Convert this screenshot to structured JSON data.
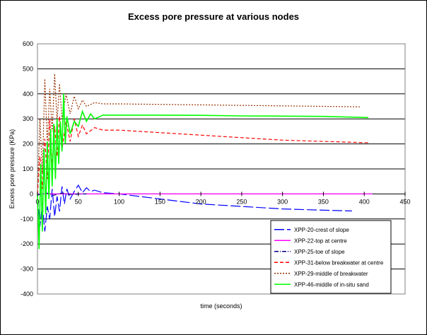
{
  "chart_data": {
    "type": "line",
    "title": "Excess pore pressure at various nodes",
    "xlabel": "time (seconds)",
    "ylabel": "Excess pore pressure (KPa)",
    "xlim": [
      0,
      450
    ],
    "ylim": [
      -400,
      600
    ],
    "x_ticks": [
      0,
      50,
      100,
      150,
      200,
      250,
      300,
      350,
      400,
      450
    ],
    "y_ticks": [
      600,
      500,
      400,
      300,
      200,
      100,
      0,
      -100,
      -200,
      -300,
      -400
    ],
    "grid": "horizontal",
    "legend_position": "bottom-right",
    "series": [
      {
        "name": "XPP-20-crest of slope",
        "color": "#0000ff",
        "dash": "solid-gapped",
        "x": [
          0,
          3,
          6,
          9,
          12,
          15,
          18,
          21,
          24,
          27,
          30,
          33,
          36,
          40,
          45,
          50,
          55,
          60,
          65,
          70,
          80,
          100,
          150,
          200,
          250,
          300,
          350,
          385
        ],
        "y": [
          -10,
          -130,
          -40,
          -150,
          -50,
          -100,
          20,
          -90,
          -10,
          -70,
          30,
          -40,
          20,
          -20,
          10,
          35,
          5,
          25,
          10,
          15,
          5,
          0,
          -20,
          -40,
          -50,
          -60,
          -65,
          -68
        ]
      },
      {
        "name": "XPP-22-top at centre",
        "color": "#ff00ff",
        "dash": "solid",
        "x": [
          0,
          20,
          40,
          60,
          100,
          200,
          300,
          410
        ],
        "y": [
          0,
          0,
          0,
          0,
          0,
          0,
          0,
          0
        ]
      },
      {
        "name": "XPP-25-toe of slope",
        "color": "#000080",
        "dash": "dash-dot",
        "x": [
          0,
          10,
          20,
          30,
          40,
          60
        ],
        "y": [
          -5,
          5,
          -5,
          3,
          -2,
          0
        ]
      },
      {
        "name": "XPP-31-below breakwater at centre",
        "color": "#ff0000",
        "dash": "dashed",
        "x": [
          0,
          3,
          6,
          9,
          12,
          15,
          18,
          21,
          24,
          27,
          30,
          35,
          40,
          45,
          50,
          55,
          60,
          70,
          80,
          100,
          150,
          200,
          250,
          300,
          350,
          400,
          405
        ],
        "y": [
          0,
          150,
          20,
          220,
          60,
          300,
          110,
          270,
          150,
          310,
          180,
          290,
          210,
          300,
          230,
          275,
          240,
          265,
          255,
          255,
          245,
          235,
          225,
          215,
          210,
          205,
          205
        ]
      },
      {
        "name": "XPP-29-middle of breakwater",
        "color": "#993300",
        "dash": "dotted",
        "x": [
          0,
          3,
          6,
          9,
          12,
          15,
          18,
          21,
          24,
          27,
          30,
          35,
          40,
          45,
          50,
          55,
          60,
          70,
          80,
          100,
          150,
          200,
          250,
          300,
          350,
          395
        ],
        "y": [
          0,
          300,
          80,
          460,
          200,
          420,
          250,
          480,
          290,
          440,
          300,
          400,
          320,
          390,
          340,
          375,
          350,
          365,
          360,
          360,
          358,
          356,
          354,
          352,
          350,
          348
        ]
      },
      {
        "name": "XPP-46-middle of in-situ sand",
        "color": "#00ff00",
        "dash": "solid",
        "x": [
          0,
          2,
          4,
          6,
          8,
          10,
          12,
          14,
          16,
          18,
          20,
          22,
          24,
          26,
          28,
          30,
          32,
          34,
          36,
          40,
          45,
          50,
          55,
          60,
          65,
          70,
          80,
          100,
          150,
          200,
          250,
          300,
          350,
          405
        ],
        "y": [
          0,
          -220,
          120,
          -150,
          180,
          -80,
          210,
          -20,
          260,
          30,
          280,
          60,
          300,
          120,
          290,
          170,
          400,
          200,
          310,
          240,
          290,
          270,
          330,
          290,
          320,
          300,
          315,
          315,
          315,
          314,
          312,
          311,
          310,
          305
        ]
      }
    ]
  }
}
